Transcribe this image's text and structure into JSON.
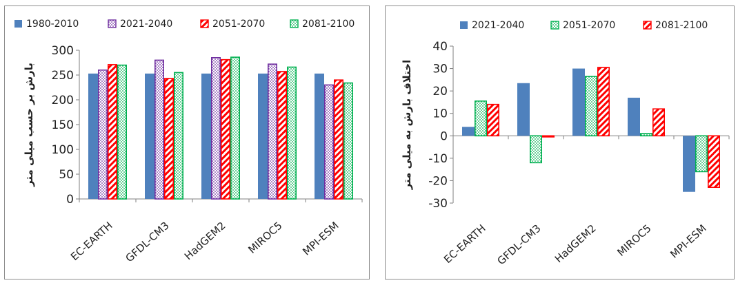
{
  "chart_data": [
    {
      "type": "bar",
      "categories": [
        "EC-EARTH",
        "GFDL-CM3",
        "HadGEM2",
        "MIROC5",
        "MPI-ESM"
      ],
      "series": [
        {
          "name": "1980-2010",
          "values": [
            253,
            253,
            253,
            253,
            253
          ],
          "color": "#4f81bd",
          "pattern": "solid"
        },
        {
          "name": "2021-2040",
          "values": [
            260,
            280,
            285,
            272,
            230
          ],
          "color": "#7030a0",
          "pattern": "dots"
        },
        {
          "name": "2051-2070",
          "values": [
            271,
            243,
            281,
            257,
            240
          ],
          "color": "#ff0000",
          "pattern": "diag"
        },
        {
          "name": "2081-2100",
          "values": [
            270,
            255,
            286,
            266,
            234
          ],
          "color": "#00b050",
          "pattern": "dots"
        }
      ],
      "ylabel": "بارش بر حسب میلی متر",
      "ylim": [
        0,
        300
      ],
      "yticks": [
        0,
        50,
        100,
        150,
        200,
        250,
        300
      ],
      "grid": false,
      "legend": "top"
    },
    {
      "type": "bar",
      "categories": [
        "EC-EARTH",
        "GFDL-CM3",
        "HadGEM2",
        "MIROC5",
        "MPI-ESM"
      ],
      "series": [
        {
          "name": "2021-2040",
          "values": [
            4,
            23.5,
            30,
            17,
            -25
          ],
          "color": "#4f81bd",
          "pattern": "solid"
        },
        {
          "name": "2051-2070",
          "values": [
            15.5,
            -12,
            26.5,
            1,
            -16
          ],
          "color": "#00b050",
          "pattern": "dots"
        },
        {
          "name": "2081-2100",
          "values": [
            14,
            -0.5,
            30.5,
            12,
            -23
          ],
          "color": "#ff0000",
          "pattern": "diag"
        }
      ],
      "ylabel": "اختلاف بارش به میلی متر",
      "ylim": [
        -30,
        40
      ],
      "yticks": [
        -30,
        -20,
        -10,
        0,
        10,
        20,
        30,
        40
      ],
      "grid": false,
      "legend": "top"
    }
  ]
}
